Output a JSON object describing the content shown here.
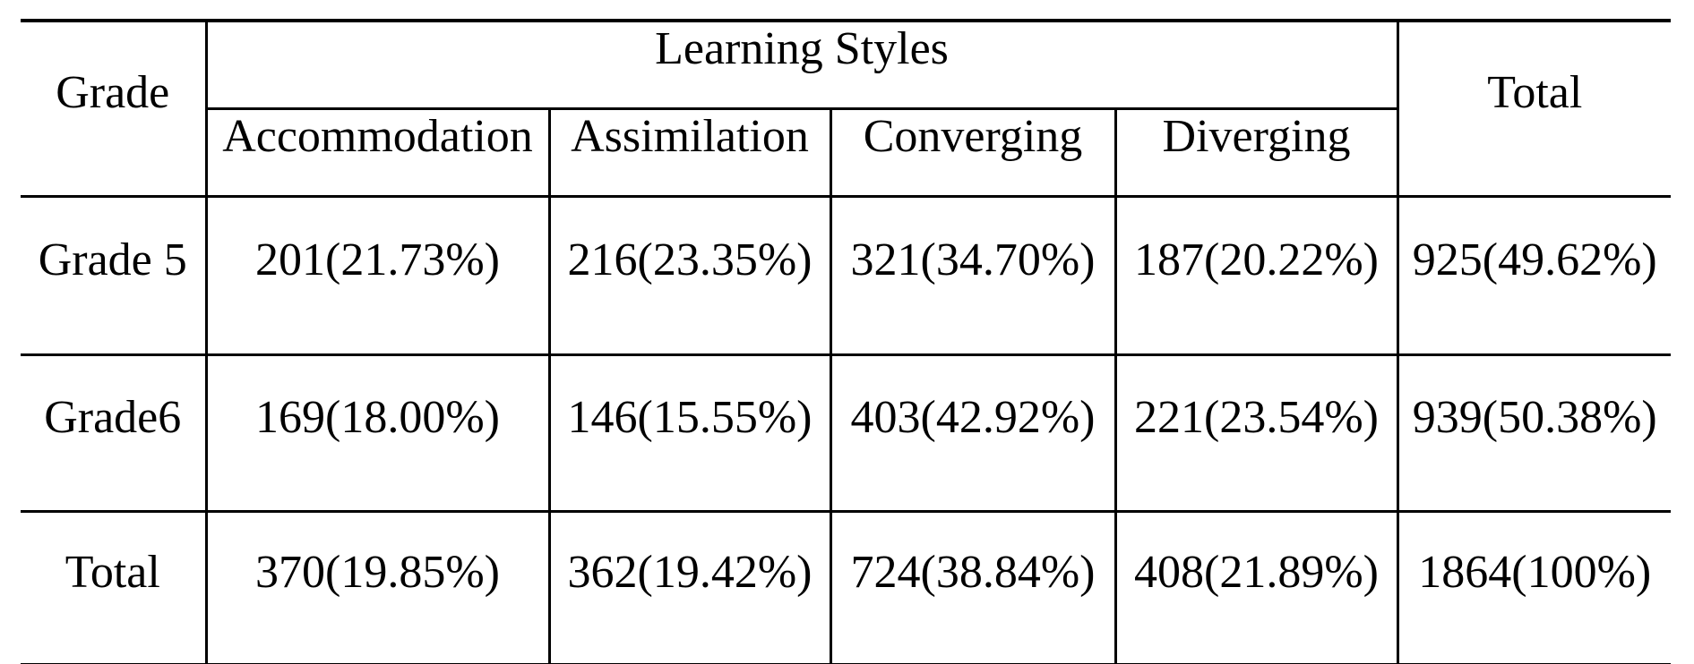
{
  "page": {
    "background": "#ffffff",
    "line_color": "#000000",
    "text_color": "#000000"
  },
  "table": {
    "header": {
      "grade": "Grade",
      "group": "Learning Styles",
      "total": "Total",
      "styles": [
        "Accommodation",
        "Assimilation",
        "Converging",
        "Diverging"
      ]
    },
    "rows": [
      [
        "Grade 5",
        "201(21.73%)",
        "216(23.35%)",
        "321(34.70%)",
        "187(20.22%)",
        "925(49.62%)"
      ],
      [
        "Grade6",
        "169(18.00%)",
        "146(15.55%)",
        "403(42.92%)",
        "221(23.54%)",
        "939(50.38%)"
      ],
      [
        "Total",
        "370(19.85%)",
        "362(19.42%)",
        "724(38.84%)",
        "408(21.89%)",
        "1864(100%)"
      ]
    ]
  }
}
